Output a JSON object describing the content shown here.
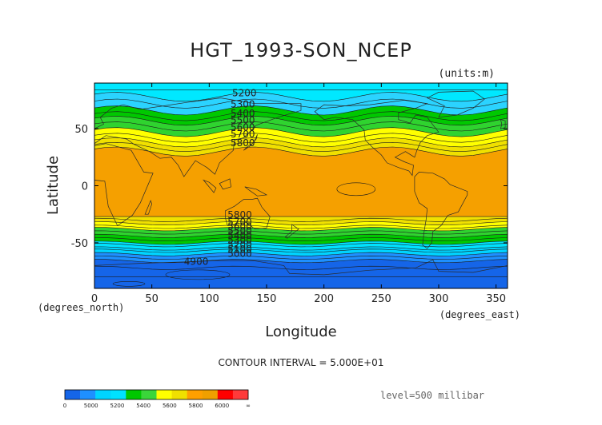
{
  "chart_data": {
    "type": "heatmap",
    "title": "HGT_1993-SON_NCEP",
    "units_label": "(units:m)",
    "xlabel": "Longitude",
    "ylabel": "Latitude",
    "x_unit_label": "(degrees_east)",
    "y_unit_label": "(degrees_north)",
    "xlim": [
      0,
      360
    ],
    "ylim": [
      -90,
      90
    ],
    "x_ticks": [
      0,
      50,
      100,
      150,
      200,
      250,
      300,
      350
    ],
    "y_ticks": [
      -50,
      0,
      50
    ],
    "contour_interval_text": "CONTOUR INTERVAL = 5.000E+01",
    "level_text": "level=500 millibar",
    "contour_labels_north": [
      "5200",
      "5300",
      "5400",
      "5500",
      "5600",
      "5700",
      "5800"
    ],
    "contour_labels_south": [
      "5800",
      "5700",
      "5600",
      "5500",
      "5400",
      "5300",
      "5200",
      "5100",
      "5000"
    ],
    "contour_label_min": "4900",
    "colorbar": {
      "labels": [
        "0",
        "5000",
        "5200",
        "5400",
        "5600",
        "5800",
        "6000",
        "∞"
      ],
      "colors": [
        "#1565e8",
        "#1e90ff",
        "#00d4ff",
        "#00e2ff",
        "#00c800",
        "#3ad63a",
        "#ffff00",
        "#f0e000",
        "#ffa000",
        "#f0a000",
        "#ff0000",
        "#ff3a3a"
      ]
    },
    "bands": [
      {
        "lat_from": 90,
        "lat_to": 78,
        "color": "#00e8ff"
      },
      {
        "lat_from": 78,
        "lat_to": 66,
        "color": "#2bd3ff"
      },
      {
        "lat_from": 66,
        "lat_to": 57,
        "color": "#00c800"
      },
      {
        "lat_from": 57,
        "lat_to": 47,
        "color": "#2fd32f"
      },
      {
        "lat_from": 47,
        "lat_to": 38,
        "color": "#ffff00"
      },
      {
        "lat_from": 38,
        "lat_to": 30,
        "color": "#f0e000"
      },
      {
        "lat_from": 30,
        "lat_to": -27,
        "color": "#f5a000"
      },
      {
        "lat_from": -27,
        "lat_to": -33,
        "color": "#f0e000"
      },
      {
        "lat_from": -33,
        "lat_to": -38,
        "color": "#ffff00"
      },
      {
        "lat_from": -38,
        "lat_to": -44,
        "color": "#2fd32f"
      },
      {
        "lat_from": -44,
        "lat_to": -50,
        "color": "#00c800"
      },
      {
        "lat_from": -50,
        "lat_to": -55,
        "color": "#00e2ff"
      },
      {
        "lat_from": -55,
        "lat_to": -60,
        "color": "#00d4ff"
      },
      {
        "lat_from": -60,
        "lat_to": -66,
        "color": "#1e90ff"
      },
      {
        "lat_from": -66,
        "lat_to": -90,
        "color": "#1565e8"
      }
    ]
  }
}
